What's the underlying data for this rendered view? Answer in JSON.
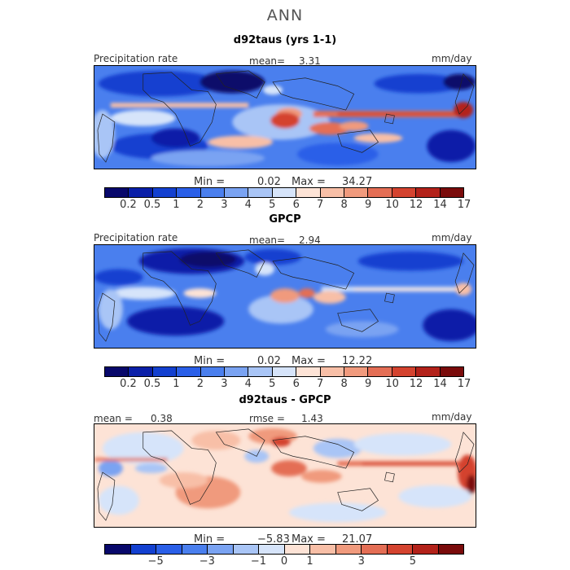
{
  "title": "ANN",
  "panels": [
    {
      "title": "d92taus (yrs 1-1)",
      "variable": "Precipitation rate",
      "mean_label": "mean=",
      "mean_value": "3.31",
      "units": "mm/day",
      "min_label": "Min =",
      "min_value": "0.02",
      "max_label": "Max =",
      "max_value": "34.27",
      "colorbar_ticks": [
        "0.2",
        "0.5",
        "1",
        "2",
        "3",
        "4",
        "5",
        "6",
        "7",
        "8",
        "9",
        "10",
        "12",
        "14",
        "17"
      ]
    },
    {
      "title": "GPCP",
      "variable": "Precipitation rate",
      "mean_label": "mean=",
      "mean_value": "2.94",
      "units": "mm/day",
      "min_label": "Min =",
      "min_value": "0.02",
      "max_label": "Max =",
      "max_value": "12.22",
      "colorbar_ticks": [
        "0.2",
        "0.5",
        "1",
        "2",
        "3",
        "4",
        "5",
        "6",
        "7",
        "8",
        "9",
        "10",
        "12",
        "14",
        "17"
      ]
    },
    {
      "title": "d92taus - GPCP",
      "mean_label": "mean =",
      "mean_value": "0.38",
      "rmse_label": "rmse =",
      "rmse_value": "1.43",
      "units": "mm/day",
      "min_label": "Min =",
      "min_value": "−5.83",
      "max_label": "Max =",
      "max_value": "21.07",
      "colorbar_ticks": [
        "−5",
        "−3",
        "−1",
        "0",
        "1",
        "3",
        "5"
      ]
    }
  ],
  "colors": {
    "precip": [
      "#08086b",
      "#0a1fa8",
      "#1340d0",
      "#2a5fe8",
      "#4a7fee",
      "#7aa3f2",
      "#a9c5f6",
      "#d6e4fa",
      "#fde3d6",
      "#f8bfa7",
      "#f09a7d",
      "#e46e55",
      "#d4432f",
      "#b3221a",
      "#7a0b0b"
    ],
    "diff": [
      "#08086b",
      "#1340d0",
      "#2a5fe8",
      "#4a7fee",
      "#7aa3f2",
      "#a9c5f6",
      "#d6e4fa",
      "#fde3d6",
      "#f8bfa7",
      "#f09a7d",
      "#e46e55",
      "#d4432f",
      "#b3221a",
      "#7a0b0b"
    ]
  }
}
